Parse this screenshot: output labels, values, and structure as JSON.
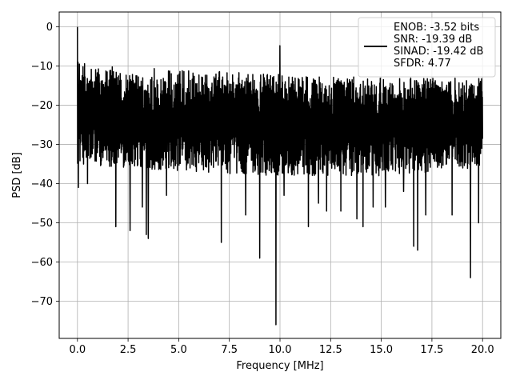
{
  "chart_data": {
    "type": "line",
    "title": "",
    "xlabel": "Frequency [MHz]",
    "ylabel": "PSD [dB]",
    "xlim": [
      -0.9,
      20.9
    ],
    "ylim": [
      -79.5,
      3.8
    ],
    "xticks": [
      0.0,
      2.5,
      5.0,
      7.5,
      10.0,
      12.5,
      15.0,
      17.5,
      20.0
    ],
    "xtick_labels": [
      "0.0",
      "2.5",
      "5.0",
      "7.5",
      "10.0",
      "12.5",
      "15.0",
      "17.5",
      "20.0"
    ],
    "yticks": [
      0,
      -10,
      -20,
      -30,
      -40,
      -50,
      -60,
      -70
    ],
    "ytick_labels": [
      "0",
      "−10",
      "−20",
      "−30",
      "−40",
      "−50",
      "−60",
      "−70"
    ],
    "grid": true,
    "legend_position": "top-right",
    "legend_lines": [
      "ENOB: -3.52 bits",
      "SNR: -19.39 dB",
      "SINAD: -19.42 dB",
      "SFDR: 4.77"
    ],
    "series": [
      {
        "color": "#000000",
        "noise": {
          "x_range": [
            0.0,
            20.0
          ],
          "points": 2048,
          "envelope_top": [
            [
              0.05,
              -9
            ],
            [
              1.5,
              -10
            ],
            [
              5,
              -11
            ],
            [
              10,
              -12
            ],
            [
              15,
              -13
            ],
            [
              20,
              -13
            ]
          ],
          "envelope_bottom": [
            [
              0.05,
              -35
            ],
            [
              5,
              -37
            ],
            [
              10,
              -38
            ],
            [
              15,
              -38
            ],
            [
              20,
              -36
            ]
          ]
        },
        "peaks": [
          [
            0.0,
            0.0
          ],
          [
            0.03,
            -9
          ],
          [
            10.0,
            -4.8
          ]
        ],
        "dips": [
          [
            0.05,
            -41
          ],
          [
            0.5,
            -40
          ],
          [
            1.9,
            -51
          ],
          [
            2.6,
            -52
          ],
          [
            3.2,
            -46
          ],
          [
            3.4,
            -53
          ],
          [
            3.5,
            -54
          ],
          [
            4.4,
            -43
          ],
          [
            7.1,
            -55
          ],
          [
            8.3,
            -48
          ],
          [
            9.0,
            -59
          ],
          [
            9.8,
            -76
          ],
          [
            10.2,
            -43
          ],
          [
            11.4,
            -51
          ],
          [
            11.9,
            -45
          ],
          [
            12.3,
            -47
          ],
          [
            13.0,
            -47
          ],
          [
            13.8,
            -49
          ],
          [
            14.1,
            -51
          ],
          [
            14.6,
            -46
          ],
          [
            15.2,
            -46
          ],
          [
            16.1,
            -42
          ],
          [
            16.6,
            -56
          ],
          [
            16.8,
            -57
          ],
          [
            17.2,
            -48
          ],
          [
            18.5,
            -48
          ],
          [
            19.4,
            -64
          ],
          [
            19.8,
            -50
          ]
        ]
      }
    ]
  }
}
